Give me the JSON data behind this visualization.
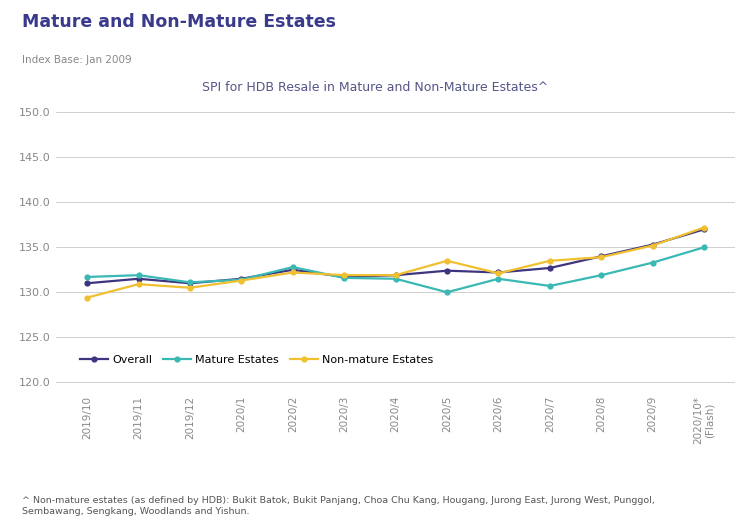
{
  "title": "Mature and Non-Mature Estates",
  "index_base": "Index Base: Jan 2009",
  "chart_title": "SPI for HDB Resale in Mature and Non-Mature Estates^",
  "x_labels": [
    "2019/10",
    "2019/11",
    "2019/12",
    "2020/1",
    "2020/2",
    "2020/3",
    "2020/4",
    "2020/5",
    "2020/6",
    "2020/7",
    "2020/8",
    "2020/9",
    "2020/10*\n(Flash)"
  ],
  "overall": [
    131.0,
    131.5,
    131.0,
    131.5,
    132.5,
    131.7,
    131.9,
    132.4,
    132.2,
    132.7,
    134.0,
    135.3,
    137.0
  ],
  "mature": [
    131.7,
    131.9,
    131.1,
    131.4,
    132.8,
    131.6,
    131.5,
    130.0,
    131.5,
    130.7,
    131.9,
    133.3,
    135.0
  ],
  "non_mature": [
    129.4,
    130.9,
    130.5,
    131.3,
    132.2,
    131.9,
    131.9,
    133.5,
    132.1,
    133.5,
    133.9,
    135.2,
    137.2
  ],
  "overall_color": "#3d3580",
  "mature_color": "#3ab8b4",
  "non_mature_color": "#f0c030",
  "ylim": [
    119.0,
    152.0
  ],
  "yticks": [
    120.0,
    125.0,
    130.0,
    135.0,
    140.0,
    145.0,
    150.0
  ],
  "legend_labels": [
    "Overall",
    "Mature Estates",
    "Non-mature Estates"
  ],
  "footnote": "^ Non-mature estates (as defined by HDB): Bukit Batok, Bukit Panjang, Choa Chu Kang, Hougang, Jurong East, Jurong West, Punggol,\nSembawang, Sengkang, Woodlands and Yishun.",
  "bg_color": "#ffffff",
  "grid_color": "#d0d0d0",
  "title_color": "#3a3a8c",
  "index_color": "#888888",
  "chart_title_color": "#555588",
  "tick_color": "#888888",
  "footnote_color": "#555555"
}
